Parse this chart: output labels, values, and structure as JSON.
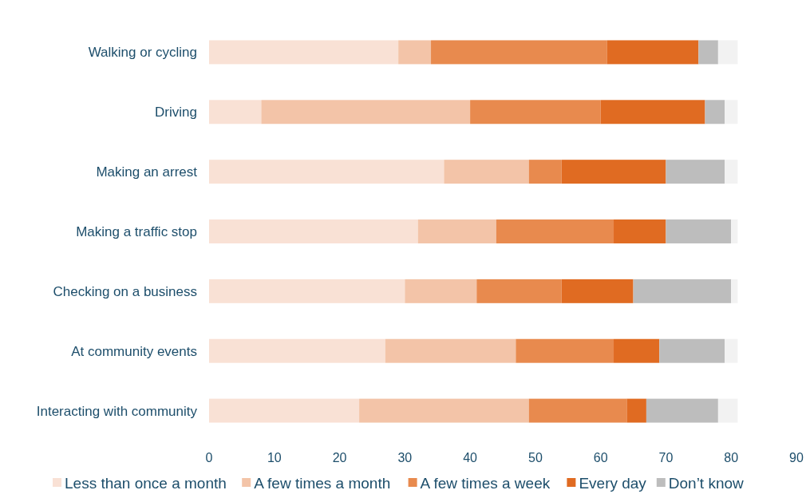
{
  "chart_data": {
    "type": "bar",
    "orientation": "horizontal",
    "stacked": true,
    "categories": [
      "Walking or cycling",
      "Driving",
      "Making an arrest",
      "Making a traffic stop",
      "Checking on a business",
      "At community events",
      "Interacting with community"
    ],
    "series": [
      {
        "name": "Less than once a month",
        "color": "#f9e1d5",
        "values": [
          29,
          8,
          36,
          32,
          30,
          27,
          23
        ]
      },
      {
        "name": "A few times a month",
        "color": "#f3c4a8",
        "values": [
          5,
          32,
          13,
          12,
          11,
          20,
          26
        ]
      },
      {
        "name": "A few times a week",
        "color": "#e88a4e",
        "values": [
          27,
          20,
          5,
          18,
          13,
          15,
          15
        ]
      },
      {
        "name": "Every day",
        "color": "#e06b22",
        "values": [
          14,
          16,
          16,
          8,
          11,
          7,
          3
        ]
      },
      {
        "name": "Don’t know",
        "color": "#bdbdbd",
        "values": [
          3,
          3,
          9,
          10,
          15,
          10,
          11
        ]
      },
      {
        "color": "#f2f2f2",
        "values": [
          3,
          2,
          2,
          1,
          1,
          2,
          3
        ]
      }
    ],
    "xlim": [
      0,
      90
    ],
    "xticks": [
      0,
      10,
      20,
      30,
      40,
      50,
      60,
      70,
      80,
      90
    ],
    "legend": "bottom",
    "grid": false
  }
}
